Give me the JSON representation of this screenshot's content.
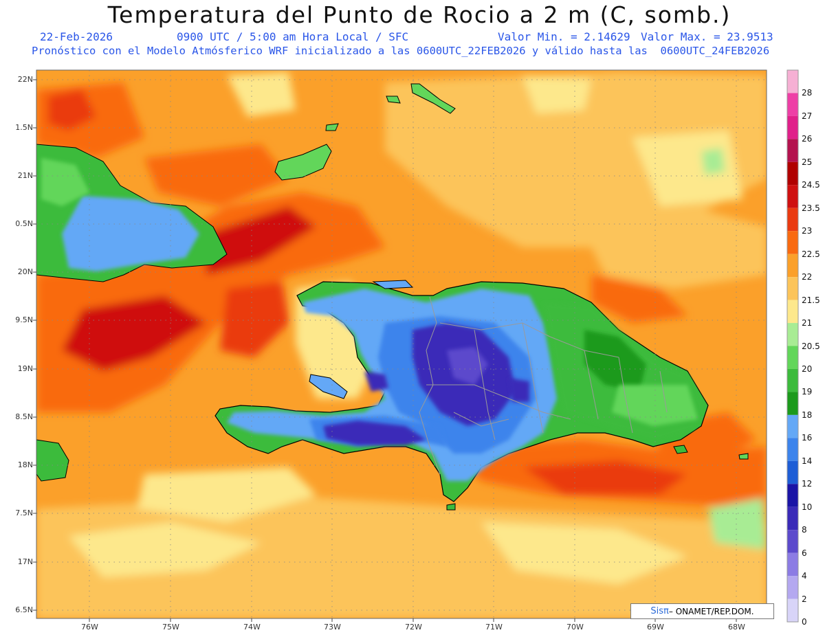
{
  "header": {
    "title": "Temperatura del Punto de Rocio a 2 m (C, somb.)",
    "date": "22-Feb-2026",
    "time": "0900 UTC / 5:00 am Hora Local / SFC",
    "min_label": "Valor Min. = 2.14629",
    "max_label": "Valor Max. = 23.9513",
    "description": "Pronóstico con el Modelo Atmósferico WRF inicializado a las 0600UTC_22FEB2026 y válido hasta las  0600UTC_24FEB2026"
  },
  "axes": {
    "lat_labels": [
      "22N",
      "1.5N",
      "21N",
      "0.5N",
      "20N",
      "9.5N",
      "19N",
      "8.5N",
      "18N",
      "7.5N",
      "17N",
      "6.5N"
    ],
    "lon_labels": [
      "76W",
      "75W",
      "74W",
      "73W",
      "72W",
      "71W",
      "70W",
      "69W",
      "68W"
    ]
  },
  "colorbar": {
    "labels": [
      "28",
      "27",
      "26",
      "25",
      "24.5",
      "23.5",
      "23",
      "22.5",
      "22",
      "21.5",
      "21",
      "20.5",
      "20",
      "19",
      "18",
      "16",
      "14",
      "12",
      "10",
      "8",
      "6",
      "4",
      "2",
      "0"
    ],
    "colors": [
      "#f6b0d4",
      "#ee3fa6",
      "#e0208a",
      "#b4124e",
      "#b00000",
      "#cf1010",
      "#ea3a10",
      "#f96a10",
      "#fba02a",
      "#fcc45a",
      "#fde88c",
      "#a8ec94",
      "#62d65a",
      "#3cbb3c",
      "#1c9a1c",
      "#64a8f6",
      "#3c84ec",
      "#1e5ed6",
      "#1a14a6",
      "#3a2ab8",
      "#5c4acc",
      "#8c7ce4",
      "#b4a8f0",
      "#d8d4f8"
    ]
  },
  "credit": {
    "brand": "Sisπ",
    "text": " – ONAMET/REP.DOM."
  }
}
